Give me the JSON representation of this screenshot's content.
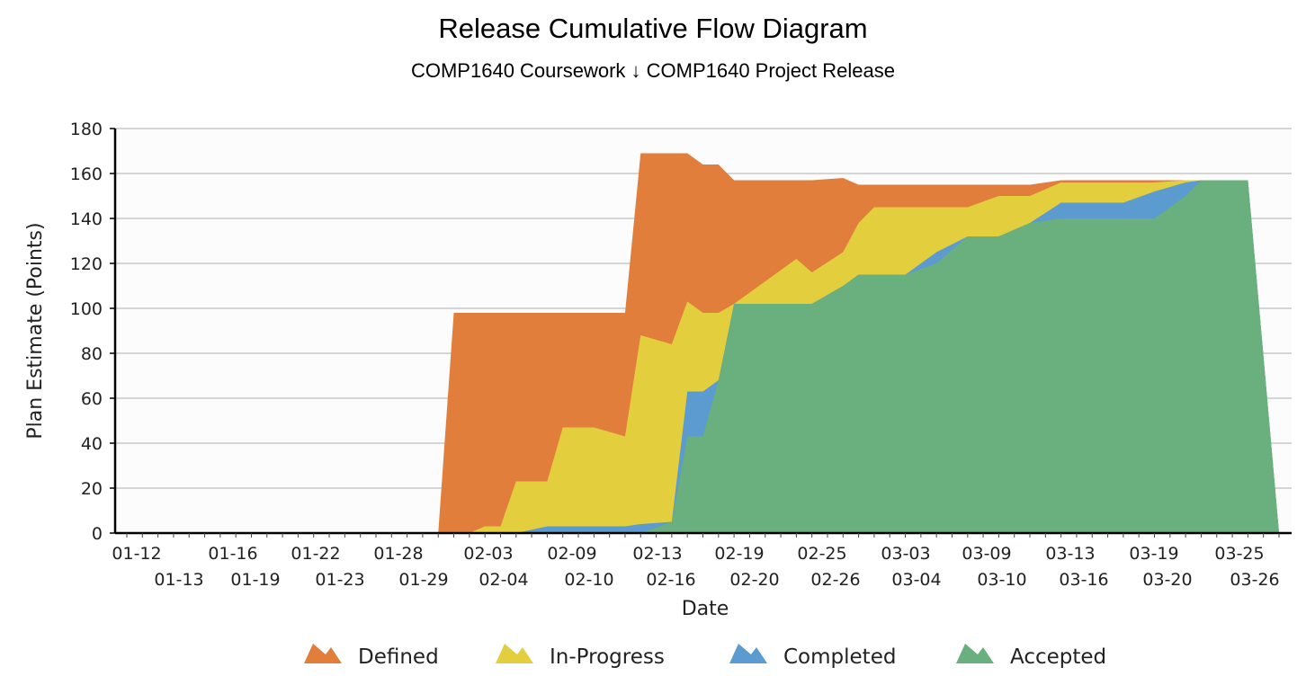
{
  "chart_data": {
    "type": "area",
    "title": "Release Cumulative Flow Diagram",
    "subtitle": "COMP1640 Coursework ↓ COMP1640 Project Release",
    "xlabel": "Date",
    "ylabel": "Plan Estimate (Points)",
    "ylim": [
      0,
      180
    ],
    "yticks": [
      0,
      20,
      40,
      60,
      80,
      100,
      120,
      140,
      160,
      180
    ],
    "grid": true,
    "legend_position": "bottom",
    "x_ticks_row1": [
      "01-12",
      "01-16",
      "01-22",
      "01-28",
      "02-03",
      "02-09",
      "02-13",
      "02-19",
      "02-25",
      "03-03",
      "03-09",
      "03-13",
      "03-19",
      "03-25"
    ],
    "x_ticks_row2": [
      "01-13",
      "01-19",
      "01-23",
      "01-29",
      "02-04",
      "02-10",
      "02-16",
      "02-20",
      "02-26",
      "03-04",
      "03-10",
      "03-16",
      "03-20",
      "03-26"
    ],
    "x": [
      "01-12",
      "01-13",
      "01-14",
      "01-15",
      "01-16",
      "01-17",
      "01-18",
      "01-19",
      "01-20",
      "01-21",
      "01-22",
      "01-23",
      "01-24",
      "01-25",
      "01-26",
      "01-27",
      "01-28",
      "01-29",
      "01-30",
      "01-31",
      "02-01",
      "02-02",
      "02-03",
      "02-04",
      "02-05",
      "02-06",
      "02-07",
      "02-08",
      "02-09",
      "02-10",
      "02-11",
      "02-12",
      "02-13",
      "02-14",
      "02-15",
      "02-16",
      "02-17",
      "02-18",
      "02-19",
      "02-20",
      "02-21",
      "02-22",
      "02-23",
      "02-24",
      "02-25",
      "02-26",
      "02-27",
      "02-28",
      "03-01",
      "03-02",
      "03-03",
      "03-04",
      "03-05",
      "03-06",
      "03-07",
      "03-08",
      "03-09",
      "03-10",
      "03-11",
      "03-12",
      "03-13",
      "03-14",
      "03-15",
      "03-16",
      "03-17",
      "03-18",
      "03-19",
      "03-20",
      "03-21",
      "03-22",
      "03-23",
      "03-24",
      "03-25",
      "03-26",
      "03-27"
    ],
    "series": [
      {
        "name": "Accepted",
        "color": "#6ab07e",
        "values": [
          0,
          0,
          0,
          0,
          0,
          0,
          0,
          0,
          0,
          0,
          0,
          0,
          0,
          0,
          0,
          0,
          0,
          0,
          0,
          0,
          0,
          0,
          0,
          0,
          0,
          0,
          0,
          0,
          0,
          0,
          0,
          0,
          0,
          0,
          0,
          0,
          0,
          0,
          0,
          0,
          0,
          0,
          0,
          0,
          0,
          0,
          0,
          0,
          0,
          0,
          0,
          0,
          0,
          0,
          0,
          0,
          0,
          0,
          0,
          0,
          0,
          0,
          0,
          0,
          0,
          0,
          0,
          0,
          0,
          0,
          0,
          0,
          0,
          0,
          0
        ]
      },
      {
        "name": "Completed",
        "color": "#5b9bd0",
        "values": [
          0,
          0,
          0,
          0,
          0,
          0,
          0,
          0,
          0,
          0,
          0,
          0,
          0,
          0,
          0,
          0,
          0,
          0,
          0,
          0,
          0,
          0,
          0,
          0,
          0,
          0,
          0,
          0,
          0,
          0,
          0,
          0,
          0,
          0,
          0,
          0,
          0,
          0,
          0,
          0,
          0,
          0,
          0,
          0,
          0,
          0,
          0,
          0,
          0,
          0,
          0,
          0,
          0,
          0,
          0,
          0,
          0,
          0,
          0,
          0,
          0,
          0,
          0,
          0,
          0,
          0,
          0,
          0,
          0,
          0,
          0,
          0,
          0,
          0,
          0
        ]
      },
      {
        "name": "In-Progress",
        "color": "#e3cf3d",
        "values": [
          0,
          0,
          0,
          0,
          0,
          0,
          0,
          0,
          0,
          0,
          0,
          0,
          0,
          0,
          0,
          0,
          0,
          0,
          0,
          0,
          0,
          0,
          0,
          0,
          0,
          0,
          0,
          0,
          0,
          0,
          0,
          0,
          0,
          0,
          0,
          0,
          0,
          0,
          0,
          0,
          0,
          0,
          0,
          0,
          0,
          0,
          0,
          0,
          0,
          0,
          0,
          0,
          0,
          0,
          0,
          0,
          0,
          0,
          0,
          0,
          0,
          0,
          0,
          0,
          0,
          0,
          0,
          0,
          0,
          0,
          0,
          0,
          0,
          0,
          0
        ]
      },
      {
        "name": "Defined",
        "color": "#e27e3c",
        "values": [
          0,
          0,
          0,
          0,
          0,
          0,
          0,
          0,
          0,
          0,
          0,
          0,
          0,
          0,
          0,
          0,
          0,
          0,
          0,
          0,
          0,
          0,
          0,
          0,
          0,
          0,
          0,
          0,
          0,
          0,
          0,
          0,
          0,
          0,
          0,
          0,
          0,
          0,
          0,
          0,
          0,
          0,
          0,
          0,
          0,
          0,
          0,
          0,
          0,
          0,
          0,
          0,
          0,
          0,
          0,
          0,
          0,
          0,
          0,
          0,
          0,
          0,
          0,
          0,
          0,
          0,
          0,
          0,
          0,
          0,
          0,
          0,
          0,
          0,
          0
        ]
      }
    ],
    "stack_points": [
      {
        "x": "02-01",
        "accepted": 0,
        "completed": 0,
        "inprogress": 0,
        "defined": 0
      },
      {
        "x": "02-02",
        "accepted": 0,
        "completed": 0,
        "inprogress": 0,
        "defined": 98
      },
      {
        "x": "02-03",
        "accepted": 0,
        "completed": 0,
        "inprogress": 0,
        "defined": 98
      },
      {
        "x": "02-04",
        "accepted": 0,
        "completed": 0,
        "inprogress": 3,
        "defined": 98
      },
      {
        "x": "02-05",
        "accepted": 0,
        "completed": 0,
        "inprogress": 3,
        "defined": 98
      },
      {
        "x": "02-06",
        "accepted": 0,
        "completed": 0,
        "inprogress": 23,
        "defined": 98
      },
      {
        "x": "02-08",
        "accepted": 0,
        "completed": 3,
        "inprogress": 23,
        "defined": 98
      },
      {
        "x": "02-09",
        "accepted": 0,
        "completed": 3,
        "inprogress": 47,
        "defined": 98
      },
      {
        "x": "02-11",
        "accepted": 0,
        "completed": 3,
        "inprogress": 47,
        "defined": 98
      },
      {
        "x": "02-13",
        "accepted": 0,
        "completed": 3,
        "inprogress": 43,
        "defined": 98
      },
      {
        "x": "02-14",
        "accepted": 0,
        "completed": 4,
        "inprogress": 88,
        "defined": 169
      },
      {
        "x": "02-16",
        "accepted": 5,
        "completed": 5,
        "inprogress": 84,
        "defined": 169
      },
      {
        "x": "02-17",
        "accepted": 43,
        "completed": 63,
        "inprogress": 103,
        "defined": 169
      },
      {
        "x": "02-18",
        "accepted": 43,
        "completed": 63,
        "inprogress": 98,
        "defined": 164
      },
      {
        "x": "02-19",
        "accepted": 68,
        "completed": 68,
        "inprogress": 98,
        "defined": 164
      },
      {
        "x": "02-20",
        "accepted": 102,
        "completed": 102,
        "inprogress": 102,
        "defined": 157
      },
      {
        "x": "02-22",
        "accepted": 102,
        "completed": 102,
        "inprogress": 112,
        "defined": 157
      },
      {
        "x": "02-24",
        "accepted": 102,
        "completed": 102,
        "inprogress": 122,
        "defined": 157
      },
      {
        "x": "02-25",
        "accepted": 102,
        "completed": 102,
        "inprogress": 116,
        "defined": 157
      },
      {
        "x": "02-27",
        "accepted": 110,
        "completed": 110,
        "inprogress": 125,
        "defined": 158
      },
      {
        "x": "02-28",
        "accepted": 115,
        "completed": 115,
        "inprogress": 138,
        "defined": 155
      },
      {
        "x": "03-01",
        "accepted": 115,
        "completed": 115,
        "inprogress": 145,
        "defined": 155
      },
      {
        "x": "03-03",
        "accepted": 115,
        "completed": 115,
        "inprogress": 145,
        "defined": 155
      },
      {
        "x": "03-05",
        "accepted": 120,
        "completed": 125,
        "inprogress": 145,
        "defined": 155
      },
      {
        "x": "03-07",
        "accepted": 132,
        "completed": 132,
        "inprogress": 145,
        "defined": 155
      },
      {
        "x": "03-09",
        "accepted": 132,
        "completed": 132,
        "inprogress": 150,
        "defined": 155
      },
      {
        "x": "03-11",
        "accepted": 138,
        "completed": 138,
        "inprogress": 150,
        "defined": 155
      },
      {
        "x": "03-13",
        "accepted": 140,
        "completed": 147,
        "inprogress": 156,
        "defined": 157
      },
      {
        "x": "03-17",
        "accepted": 140,
        "completed": 147,
        "inprogress": 156,
        "defined": 157
      },
      {
        "x": "03-19",
        "accepted": 140,
        "completed": 152,
        "inprogress": 156,
        "defined": 157
      },
      {
        "x": "03-21",
        "accepted": 150,
        "completed": 156,
        "inprogress": 157,
        "defined": 157
      },
      {
        "x": "03-22",
        "accepted": 157,
        "completed": 157,
        "inprogress": 157,
        "defined": 157
      },
      {
        "x": "03-25",
        "accepted": 157,
        "completed": 157,
        "inprogress": 157,
        "defined": 157
      },
      {
        "x": "03-27",
        "accepted": 0,
        "completed": 0,
        "inprogress": 0,
        "defined": 0
      }
    ],
    "legend": [
      {
        "label": "Defined",
        "color": "#e27e3c"
      },
      {
        "label": "In-Progress",
        "color": "#e3cf3d"
      },
      {
        "label": "Completed",
        "color": "#5b9bd0"
      },
      {
        "label": "Accepted",
        "color": "#6ab07e"
      }
    ]
  }
}
